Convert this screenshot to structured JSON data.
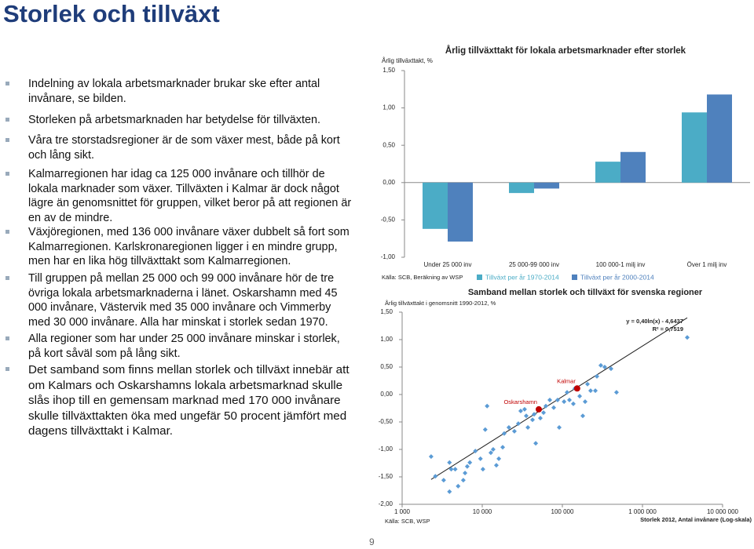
{
  "title": "Storlek och tillväxt",
  "bullets": [
    "Indelning av lokala arbetsmarknader brukar ske efter antal invånare, se bilden.",
    "Storleken på arbetsmarknaden har betydelse för tillväxten.",
    "Våra tre storstadsregioner är de som växer mest, både på kort och lång sikt.",
    "Kalmarregionen har idag ca 125 000 invånare och tillhör de lokala marknader som växer. Tillväxten i Kalmar är dock något lägre än genomsnittet för gruppen, vilket beror på att regionen är en av de mindre.",
    "Växjöregionen, med 136 000 invånare växer dubbelt så fort som Kalmarregionen. Karlskronaregionen ligger i en mindre grupp, men har en lika hög tillväxttakt som Kalmarregionen.",
    "Till gruppen på mellan 25 000 och 99 000 invånare hör de tre övriga lokala arbetsmarknaderna i länet. Oskarshamn med 45 000 invånare, Västervik med 35 000 invånare och Vimmerby med 30 000 invånare. Alla har minskat i storlek sedan 1970.",
    "Alla regioner som har under 25 000 invånare minskar i storlek, på kort såväl som på lång sikt.",
    "Det samband som finns mellan storlek och tillväxt innebär att om Kalmars och Oskarshamns lokala arbetsmarknad skulle slås ihop till en gemensam marknad med 170 000 invånare skulle tillväxttakten öka med ungefär 50 procent jämfört med dagens tillväxttakt i Kalmar."
  ],
  "page_number": "9",
  "chart_data": [
    {
      "type": "bar",
      "title": "Årlig tillväxttakt för lokala arbetsmarknader efter storlek",
      "y_label": "Årlig tillväxttakt, %",
      "source": "Källa: SCB, Beräkning av WSP",
      "categories": [
        "Under 25 000 inv",
        "25 000-99 000 inv",
        "100 000-1 milj inv",
        "Över 1 milj inv"
      ],
      "series": [
        {
          "name": "Tillväxt per år 1970-2014",
          "color": "#4bacc6",
          "values": [
            -0.62,
            -0.14,
            0.28,
            0.94
          ]
        },
        {
          "name": "Tillväxt per år 2000-2014",
          "color": "#4f81bd",
          "values": [
            -0.79,
            -0.08,
            0.41,
            1.18
          ]
        }
      ],
      "ylim": [
        -1,
        1.5
      ],
      "yticks": [
        {
          "value": 1.5,
          "label": "1,50"
        },
        {
          "value": 1,
          "label": "1,00"
        },
        {
          "value": 0.5,
          "label": "0,50"
        },
        {
          "value": 0,
          "label": "0,00"
        },
        {
          "value": -0.5,
          "label": "-0,50"
        },
        {
          "value": -1,
          "label": "-1,00"
        }
      ]
    },
    {
      "type": "scatter",
      "title": "Samband mellan storlek och tillväxt för svenska regioner",
      "y_label": "Årlig tillväxttakt i genomsnitt 1990-2012, %",
      "x_label": "Storlek 2012, Antal invånare (Log-skala)",
      "source": "Källa: SCB, WSP",
      "trendline_label": "y = 0,40ln(x) - 4,6437",
      "r2_label": "R² = 0,7519",
      "x_log": true,
      "series": [
        {
          "color": "#5b9bd5",
          "x": [
            2300,
            2600,
            3900,
            3300,
            3900,
            4100,
            4600,
            5000,
            5800,
            6100,
            7000,
            8200,
            6500,
            9500,
            10200,
            10900,
            11500,
            12800,
            13700,
            15000,
            16100,
            18000,
            18800,
            21500,
            25200,
            28200,
            30200,
            33800,
            35400,
            37100,
            42400,
            44400,
            46500,
            53100,
            58200,
            62200,
            69700,
            78000,
            87300,
            91400,
            105000,
            114500,
            122500,
            137100,
            143500,
            164400,
            179800,
            192400,
            206000,
            225300,
            258200,
            270000,
            302000,
            338000,
            405000,
            474000,
            3620000
          ],
          "y": [
            -1.13,
            -1.49,
            -1.77,
            -1.56,
            -1.24,
            -1.36,
            -1.36,
            -1.67,
            -1.56,
            -1.43,
            -1.24,
            -1.03,
            -1.31,
            -1.17,
            -1.36,
            -0.64,
            -0.21,
            -1.06,
            -1.0,
            -1.29,
            -1.17,
            -0.96,
            -0.71,
            -0.6,
            -0.67,
            -0.53,
            -0.3,
            -0.27,
            -0.39,
            -0.6,
            -0.46,
            -0.36,
            -0.89,
            -0.43,
            -0.33,
            -0.21,
            -0.1,
            -0.24,
            -0.1,
            -0.6,
            -0.13,
            0.04,
            -0.1,
            -0.17,
            0.11,
            -0.03,
            -0.39,
            -0.13,
            0.19,
            0.07,
            0.07,
            0.33,
            0.53,
            0.5,
            0.47,
            0.04,
            1.04
          ]
        }
      ],
      "highlights": [
        {
          "label": "Kalmar",
          "x": 153000,
          "y": 0.11,
          "color": "#c00000"
        },
        {
          "label": "Oskarshamn",
          "x": 50800,
          "y": -0.27,
          "color": "#c00000"
        }
      ],
      "xlim": [
        1000,
        10000000
      ],
      "xticks": [
        {
          "value": 1000,
          "label": "1 000"
        },
        {
          "value": 10000,
          "label": "10 000"
        },
        {
          "value": 100000,
          "label": "100 000"
        },
        {
          "value": 1000000,
          "label": "1 000 000"
        },
        {
          "value": 10000000,
          "label": "10 000 000"
        }
      ],
      "ylim": [
        -2,
        1.5
      ],
      "yticks": [
        {
          "value": 1.5,
          "label": "1,50"
        },
        {
          "value": 1,
          "label": "1,00"
        },
        {
          "value": 0.5,
          "label": "0,50"
        },
        {
          "value": 0,
          "label": "0,00"
        },
        {
          "value": -0.5,
          "label": "-0,50"
        },
        {
          "value": -1,
          "label": "-1,00"
        },
        {
          "value": -1.5,
          "label": "-1,50"
        },
        {
          "value": -2,
          "label": "-2,00"
        }
      ]
    }
  ]
}
